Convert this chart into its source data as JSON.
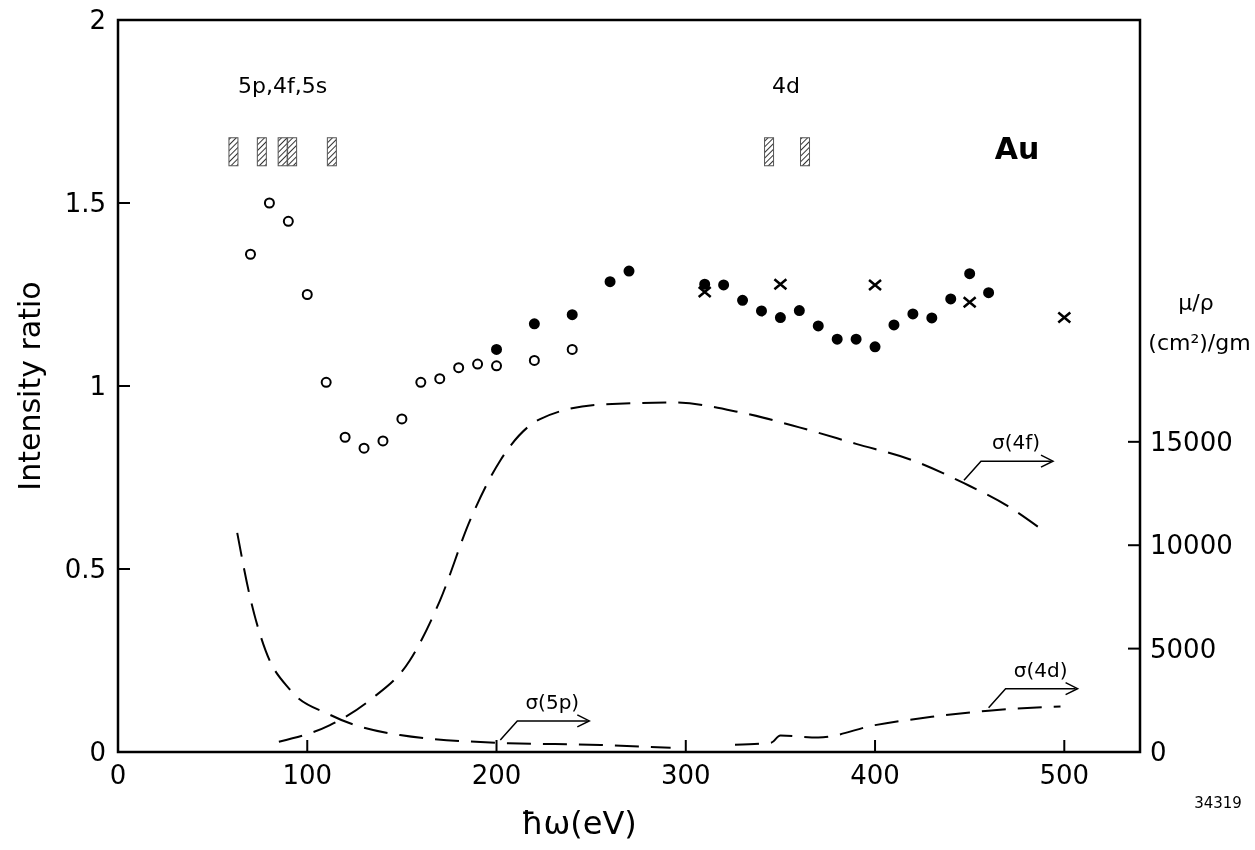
{
  "chart_data": {
    "type": "scatter",
    "xlabel": "ħω(eV)",
    "ylabel": "Intensity ratio",
    "y2label": "μ/ρ (cm²)/gm",
    "xlim": [
      0,
      540
    ],
    "xticks": [
      0,
      100,
      200,
      300,
      400,
      500
    ],
    "ylim": [
      0,
      2
    ],
    "yticks": [
      0,
      0.5,
      1,
      1.5,
      2
    ],
    "y2lim": [
      0,
      35400
    ],
    "y2ticks": [
      0,
      5000,
      10000,
      15000
    ],
    "grid": false,
    "series": [
      {
        "marker": "circle",
        "color": "#ffffff",
        "x": [
          70,
          80,
          90,
          100,
          110,
          120,
          130,
          140,
          150,
          160,
          170,
          180,
          190,
          200,
          220,
          240
        ],
        "values": [
          1.36,
          1.5,
          1.45,
          1.25,
          1.01,
          0.86,
          0.83,
          0.85,
          0.91,
          1.01,
          1.02,
          1.05,
          1.06,
          1.055,
          1.07,
          1.1
        ]
      },
      {
        "marker": "circle",
        "color": "#000000",
        "x": [
          200,
          220,
          240,
          260,
          270,
          310,
          320,
          330,
          340,
          350,
          360,
          370,
          380,
          390,
          400,
          410,
          420,
          430,
          440,
          450,
          460
        ],
        "values": [
          1.1,
          1.17,
          1.195,
          1.285,
          1.314,
          1.278,
          1.276,
          1.234,
          1.205,
          1.187,
          1.206,
          1.164,
          1.128,
          1.128,
          1.107,
          1.167,
          1.197,
          1.186,
          1.238,
          1.307,
          1.255
        ]
      },
      {
        "marker": "cross",
        "color": "#000000",
        "x": [
          310,
          350,
          400,
          450,
          500
        ],
        "values": [
          1.257,
          1.278,
          1.276,
          1.229,
          1.187
        ]
      },
      {
        "marker": "square",
        "color": "#555555",
        "x": [
          61,
          76,
          87,
          92,
          113,
          344,
          363
        ],
        "values": [
          1.64,
          1.64,
          1.64,
          1.64,
          1.64,
          1.64,
          1.64
        ]
      },
      {
        "type": "line",
        "name": "σ(4f)",
        "axis": "y2",
        "line_style": "dashed",
        "color": "#000000",
        "x": [
          85,
          112,
          133,
          154,
          170,
          186,
          202,
          223,
          255,
          294,
          330,
          360,
          390,
          420,
          447,
          470,
          486
        ],
        "values": [
          500,
          1300,
          2500,
          4400,
          7300,
          11200,
          14100,
          16100,
          16800,
          16900,
          16400,
          15700,
          14900,
          14100,
          13000,
          11900,
          10900
        ]
      },
      {
        "type": "line",
        "name": "σ(5p)",
        "axis": "y2",
        "line_style": "dashed",
        "color": "#000000",
        "x": [
          63,
          70,
          78,
          91,
          112,
          149,
          202,
          255,
          292
        ],
        "values": [
          10600,
          7400,
          4900,
          3000,
          1800,
          820,
          440,
          340,
          200
        ]
      },
      {
        "type": "line",
        "name": "σ(4d)",
        "axis": "y2",
        "line_style": "dashed",
        "color": "#000000",
        "x": [
          326,
          345,
          350,
          370,
          400,
          430,
          460,
          498
        ],
        "values": [
          350,
          450,
          800,
          700,
          1300,
          1700,
          2000,
          2200
        ]
      }
    ],
    "annotations": [
      "5p,4f,5s",
      "4d",
      "Au",
      "34319"
    ]
  }
}
